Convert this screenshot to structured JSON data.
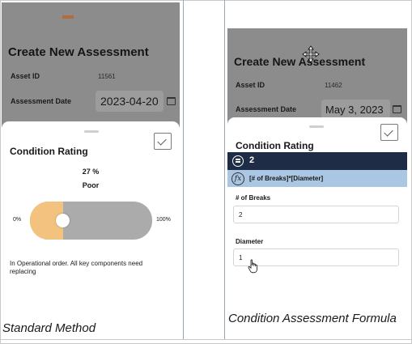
{
  "standard": {
    "form_title": "Create New Assessment",
    "asset_id_label": "Asset ID",
    "asset_id_value": "11561",
    "assessment_date_label": "Assessment Date",
    "assessment_date_value": "2023-04-20",
    "sheet_title": "Condition Rating",
    "percent_label": "27 %",
    "rating_label": "Poor",
    "slider_value_percent": 27,
    "slider_min_label": "0%",
    "slider_max_label": "100%",
    "description": "In Operational order.  All key components need replacing",
    "caption": "Standard Method"
  },
  "formula": {
    "form_title": "Create New Assessment",
    "asset_id_label": "Asset ID",
    "asset_id_value": "11462",
    "assessment_date_label": "Assessment Date",
    "assessment_date_value": "May 3, 2023",
    "sheet_title": "Condition Rating",
    "result_value": "2",
    "formula_text": "[# of Breaks]*[Diameter]",
    "breaks_label": "# of Breaks",
    "breaks_value": "2",
    "diameter_label": "Diameter",
    "diameter_value": "1",
    "caption": "Condition Assessment Formula"
  },
  "colors": {
    "slider_fill": "#f3c27e",
    "slider_track": "#ababab",
    "header_dark": "#1e2d45",
    "formula_bar": "#a9c6e2",
    "backdrop": "#8c8c8c"
  },
  "icons": [
    "calendar-icon",
    "checkmark-icon",
    "menu-circle-icon",
    "function-icon",
    "move-cursor-icon",
    "hand-pointer-icon"
  ]
}
